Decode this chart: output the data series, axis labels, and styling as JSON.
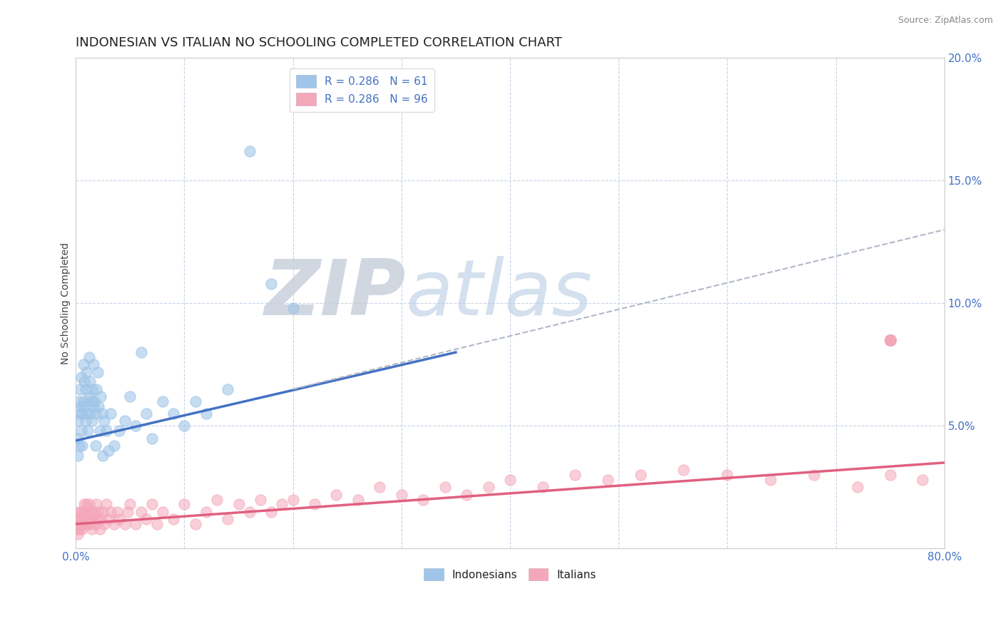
{
  "title": "INDONESIAN VS ITALIAN NO SCHOOLING COMPLETED CORRELATION CHART",
  "source_text": "Source: ZipAtlas.com",
  "ylabel": "No Schooling Completed",
  "watermark_zip": "ZIP",
  "watermark_atlas": "atlas",
  "xlim": [
    0.0,
    0.8
  ],
  "ylim": [
    0.0,
    0.2
  ],
  "xticks": [
    0.0,
    0.1,
    0.2,
    0.3,
    0.4,
    0.5,
    0.6,
    0.7,
    0.8
  ],
  "yticks": [
    0.0,
    0.05,
    0.1,
    0.15,
    0.2
  ],
  "ytick_labels": [
    "",
    "5.0%",
    "10.0%",
    "15.0%",
    "20.0%"
  ],
  "xtick_labels_left": "0.0%",
  "xtick_labels_right": "80.0%",
  "legend1_label_blue": "R = 0.286   N = 61",
  "legend1_label_pink": "R = 0.286   N = 96",
  "legend2_label_blue": "Indonesians",
  "legend2_label_pink": "Italians",
  "blue_scatter_color": "#9fc5e8",
  "pink_scatter_color": "#f4a7b9",
  "blue_line_color": "#4472c4",
  "pink_line_color": "#e06080",
  "dashed_line_color": "#b0b8c8",
  "indonesian_x": [
    0.001,
    0.002,
    0.002,
    0.003,
    0.003,
    0.004,
    0.004,
    0.005,
    0.005,
    0.005,
    0.006,
    0.006,
    0.007,
    0.007,
    0.008,
    0.008,
    0.009,
    0.009,
    0.01,
    0.01,
    0.011,
    0.012,
    0.012,
    0.013,
    0.013,
    0.014,
    0.015,
    0.015,
    0.016,
    0.016,
    0.017,
    0.018,
    0.018,
    0.019,
    0.02,
    0.021,
    0.022,
    0.023,
    0.024,
    0.025,
    0.026,
    0.028,
    0.03,
    0.032,
    0.035,
    0.04,
    0.045,
    0.05,
    0.055,
    0.06,
    0.065,
    0.07,
    0.08,
    0.09,
    0.1,
    0.11,
    0.12,
    0.14,
    0.16,
    0.18,
    0.2
  ],
  "indonesian_y": [
    0.045,
    0.038,
    0.052,
    0.06,
    0.042,
    0.055,
    0.065,
    0.048,
    0.058,
    0.07,
    0.042,
    0.055,
    0.06,
    0.075,
    0.058,
    0.068,
    0.052,
    0.065,
    0.055,
    0.072,
    0.048,
    0.062,
    0.078,
    0.055,
    0.068,
    0.06,
    0.052,
    0.065,
    0.058,
    0.075,
    0.06,
    0.042,
    0.055,
    0.065,
    0.072,
    0.058,
    0.048,
    0.062,
    0.055,
    0.038,
    0.052,
    0.048,
    0.04,
    0.055,
    0.042,
    0.048,
    0.052,
    0.062,
    0.05,
    0.08,
    0.055,
    0.045,
    0.06,
    0.055,
    0.05,
    0.06,
    0.055,
    0.065,
    0.162,
    0.108,
    0.098
  ],
  "italian_x": [
    0.001,
    0.002,
    0.002,
    0.003,
    0.003,
    0.004,
    0.004,
    0.005,
    0.005,
    0.006,
    0.006,
    0.007,
    0.007,
    0.008,
    0.008,
    0.009,
    0.009,
    0.01,
    0.01,
    0.011,
    0.011,
    0.012,
    0.012,
    0.013,
    0.014,
    0.014,
    0.015,
    0.016,
    0.017,
    0.018,
    0.019,
    0.02,
    0.021,
    0.022,
    0.023,
    0.025,
    0.026,
    0.028,
    0.03,
    0.032,
    0.035,
    0.038,
    0.04,
    0.045,
    0.048,
    0.05,
    0.055,
    0.06,
    0.065,
    0.07,
    0.075,
    0.08,
    0.09,
    0.1,
    0.11,
    0.12,
    0.13,
    0.14,
    0.15,
    0.16,
    0.17,
    0.18,
    0.19,
    0.2,
    0.22,
    0.24,
    0.26,
    0.28,
    0.3,
    0.32,
    0.34,
    0.36,
    0.38,
    0.4,
    0.43,
    0.46,
    0.49,
    0.52,
    0.56,
    0.6,
    0.64,
    0.68,
    0.72,
    0.75,
    0.78,
    0.75,
    0.75,
    0.75,
    0.75,
    0.75,
    0.75,
    0.75,
    0.75,
    0.75,
    0.75,
    0.75
  ],
  "italian_y": [
    0.008,
    0.012,
    0.006,
    0.01,
    0.015,
    0.008,
    0.012,
    0.01,
    0.015,
    0.012,
    0.008,
    0.015,
    0.01,
    0.012,
    0.018,
    0.01,
    0.015,
    0.012,
    0.018,
    0.01,
    0.015,
    0.012,
    0.018,
    0.01,
    0.015,
    0.012,
    0.008,
    0.012,
    0.015,
    0.01,
    0.018,
    0.012,
    0.015,
    0.008,
    0.012,
    0.015,
    0.01,
    0.018,
    0.012,
    0.015,
    0.01,
    0.015,
    0.012,
    0.01,
    0.015,
    0.018,
    0.01,
    0.015,
    0.012,
    0.018,
    0.01,
    0.015,
    0.012,
    0.018,
    0.01,
    0.015,
    0.02,
    0.012,
    0.018,
    0.015,
    0.02,
    0.015,
    0.018,
    0.02,
    0.018,
    0.022,
    0.02,
    0.025,
    0.022,
    0.02,
    0.025,
    0.022,
    0.025,
    0.028,
    0.025,
    0.03,
    0.028,
    0.03,
    0.032,
    0.03,
    0.028,
    0.03,
    0.025,
    0.03,
    0.028,
    0.085,
    0.085,
    0.085,
    0.085,
    0.085,
    0.085,
    0.085,
    0.085,
    0.085,
    0.085,
    0.085
  ],
  "blue_trend_x": [
    0.0,
    0.35
  ],
  "blue_trend_y": [
    0.044,
    0.08
  ],
  "pink_trend_x": [
    0.0,
    0.8
  ],
  "pink_trend_y": [
    0.01,
    0.035
  ],
  "dashed_trend_x": [
    0.2,
    0.8
  ],
  "dashed_trend_y": [
    0.065,
    0.13
  ],
  "background_color": "#ffffff",
  "grid_color": "#c8d4e8",
  "axis_color": "#cccccc",
  "title_color": "#222222",
  "tick_label_color": "#4472c4",
  "source_color": "#888888",
  "ylabel_color": "#444444",
  "watermark_zip_color": "#c8d0dc",
  "watermark_atlas_color": "#b8cce4",
  "title_fontsize": 13,
  "axis_label_fontsize": 10,
  "tick_fontsize": 11,
  "legend_fontsize": 11,
  "source_fontsize": 9,
  "marker_size": 120
}
